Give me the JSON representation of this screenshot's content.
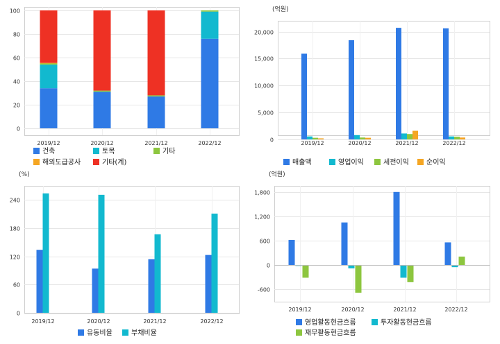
{
  "chart_data": [
    {
      "id": "composition",
      "type": "bar",
      "stacked": true,
      "unit_label": "",
      "categories": [
        "2019/12",
        "2020/12",
        "2021/12",
        "2022/12"
      ],
      "ylim": [
        0,
        100
      ],
      "yticks": [
        0,
        20,
        40,
        60,
        80,
        100
      ],
      "grid": true,
      "legend": "bottom",
      "series": [
        {
          "name": "건축",
          "color": "#2f7ae5",
          "values": [
            34,
            31,
            27,
            76
          ]
        },
        {
          "name": "토목",
          "color": "#12b9cf",
          "values": [
            20,
            0,
            0,
            23
          ]
        },
        {
          "name": "기타",
          "color": "#8dc63f",
          "values": [
            1,
            1,
            1,
            1
          ]
        },
        {
          "name": "해외도급공사",
          "color": "#f5a623",
          "values": [
            0.5,
            0,
            0,
            0
          ]
        },
        {
          "name": "기타(계)",
          "color": "#ee3124",
          "values": [
            44.5,
            68,
            72,
            0
          ]
        }
      ]
    },
    {
      "id": "income",
      "type": "bar",
      "unit_label": "(억원)",
      "categories": [
        "2019/12",
        "2020/12",
        "2021/12",
        "2022/12"
      ],
      "ylim": [
        0,
        22000
      ],
      "yticks": [
        0,
        5000,
        10000,
        15000,
        20000
      ],
      "ytick_labels": [
        "0",
        "5,000",
        "10,000",
        "15,000",
        "20,000"
      ],
      "grid": true,
      "legend": "bottom",
      "series": [
        {
          "name": "매출액",
          "color": "#2f7ae5",
          "values": [
            15900,
            18400,
            20700,
            20600
          ]
        },
        {
          "name": "영업이익",
          "color": "#12b9cf",
          "values": [
            550,
            800,
            1100,
            550
          ]
        },
        {
          "name": "세전이익",
          "color": "#8dc63f",
          "values": [
            300,
            350,
            1000,
            500
          ]
        },
        {
          "name": "순이익",
          "color": "#f5a623",
          "values": [
            200,
            300,
            1600,
            350
          ]
        }
      ]
    },
    {
      "id": "ratios",
      "type": "bar",
      "unit_label": "(%)",
      "categories": [
        "2019/12",
        "2020/12",
        "2021/12",
        "2022/12"
      ],
      "ylim": [
        0,
        270
      ],
      "yticks": [
        0,
        60,
        120,
        180,
        240
      ],
      "ytick_labels": [
        "0",
        "60",
        "120",
        "180",
        "240"
      ],
      "grid": true,
      "legend": "bottom",
      "series": [
        {
          "name": "유동비율",
          "color": "#2f7ae5",
          "values": [
            134,
            94,
            114,
            123
          ]
        },
        {
          "name": "부채비율",
          "color": "#12b9cf",
          "values": [
            254,
            251,
            167,
            211
          ]
        }
      ]
    },
    {
      "id": "cashflow",
      "type": "bar",
      "unit_label": "(억원)",
      "categories": [
        "2019/12",
        "2020/12",
        "2021/12",
        "2022/12"
      ],
      "ylim": [
        -900,
        1950
      ],
      "yticks": [
        -600,
        0,
        600,
        1200,
        1800
      ],
      "ytick_labels": [
        "-600",
        "0",
        "600",
        "1,200",
        "1,800"
      ],
      "grid": true,
      "legend": "bottom",
      "series": [
        {
          "name": "영업활동현금흐름",
          "color": "#2f7ae5",
          "values": [
            620,
            1050,
            1800,
            560
          ]
        },
        {
          "name": "투자활동현금흐름",
          "color": "#12b9cf",
          "values": [
            -20,
            -80,
            -310,
            -50
          ]
        },
        {
          "name": "재무활동현금흐름",
          "color": "#8dc63f",
          "values": [
            -310,
            -680,
            -420,
            210
          ]
        }
      ]
    }
  ]
}
